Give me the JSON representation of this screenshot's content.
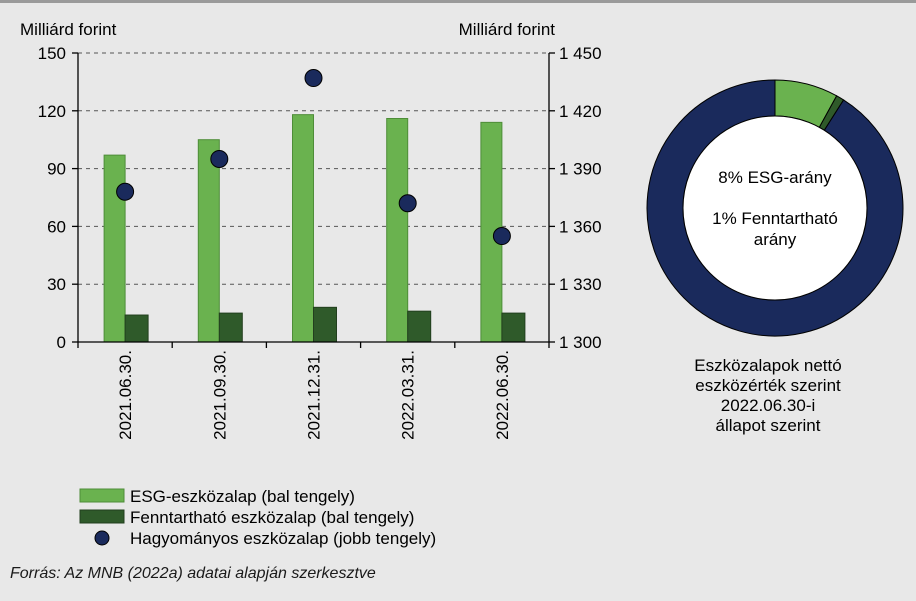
{
  "chart_data": [
    {
      "type": "bar",
      "categories": [
        "2021.06.30.",
        "2021.09.30.",
        "2021.12.31.",
        "2022.03.31.",
        "2022.06.30."
      ],
      "left_axis_title": "Milliárd forint",
      "right_axis_title": "Milliárd forint",
      "left_ylim": [
        0,
        150
      ],
      "left_ticks": [
        "0",
        "30",
        "60",
        "90",
        "120",
        "150"
      ],
      "right_ylim": [
        1300,
        1450
      ],
      "right_ticks": [
        "1 300",
        "1 330",
        "1 360",
        "1 390",
        "1 420",
        "1 450"
      ],
      "grid": "horizontal dashed",
      "series": [
        {
          "name": "ESG-eszközalap (bal tengely)",
          "kind": "bar",
          "axis": "left",
          "color": "#6ab24f",
          "values": [
            97,
            105,
            118,
            116,
            114
          ]
        },
        {
          "name": "Fenntartható eszközalap (bal tengely)",
          "kind": "bar",
          "axis": "left",
          "color": "#2f5a2a",
          "values": [
            14,
            15,
            18,
            16,
            15
          ]
        },
        {
          "name": "Hagyományos eszközalap (jobb tengely)",
          "kind": "scatter",
          "axis": "right",
          "color": "#1a2a5c",
          "values": [
            1378,
            1395,
            1437,
            1372,
            1355
          ]
        }
      ]
    },
    {
      "type": "pie",
      "style": "donut",
      "slices": [
        {
          "label": "ESG",
          "value": 8,
          "color": "#6ab24f"
        },
        {
          "label": "Fenntartható",
          "value": 1,
          "color": "#2f5a2a"
        },
        {
          "label": "Hagyományos",
          "value": 91,
          "color": "#1a2a5c"
        }
      ],
      "center_text": [
        "8% ESG-arány",
        "1% Fenntartható",
        "arány"
      ],
      "caption": [
        "Eszközalapok nettó",
        "eszközérték szerint",
        "2022.06.30-i",
        "állapot szerint"
      ]
    }
  ],
  "source": "Forrás: Az MNB (2022a) adatai alapján szerkesztve"
}
